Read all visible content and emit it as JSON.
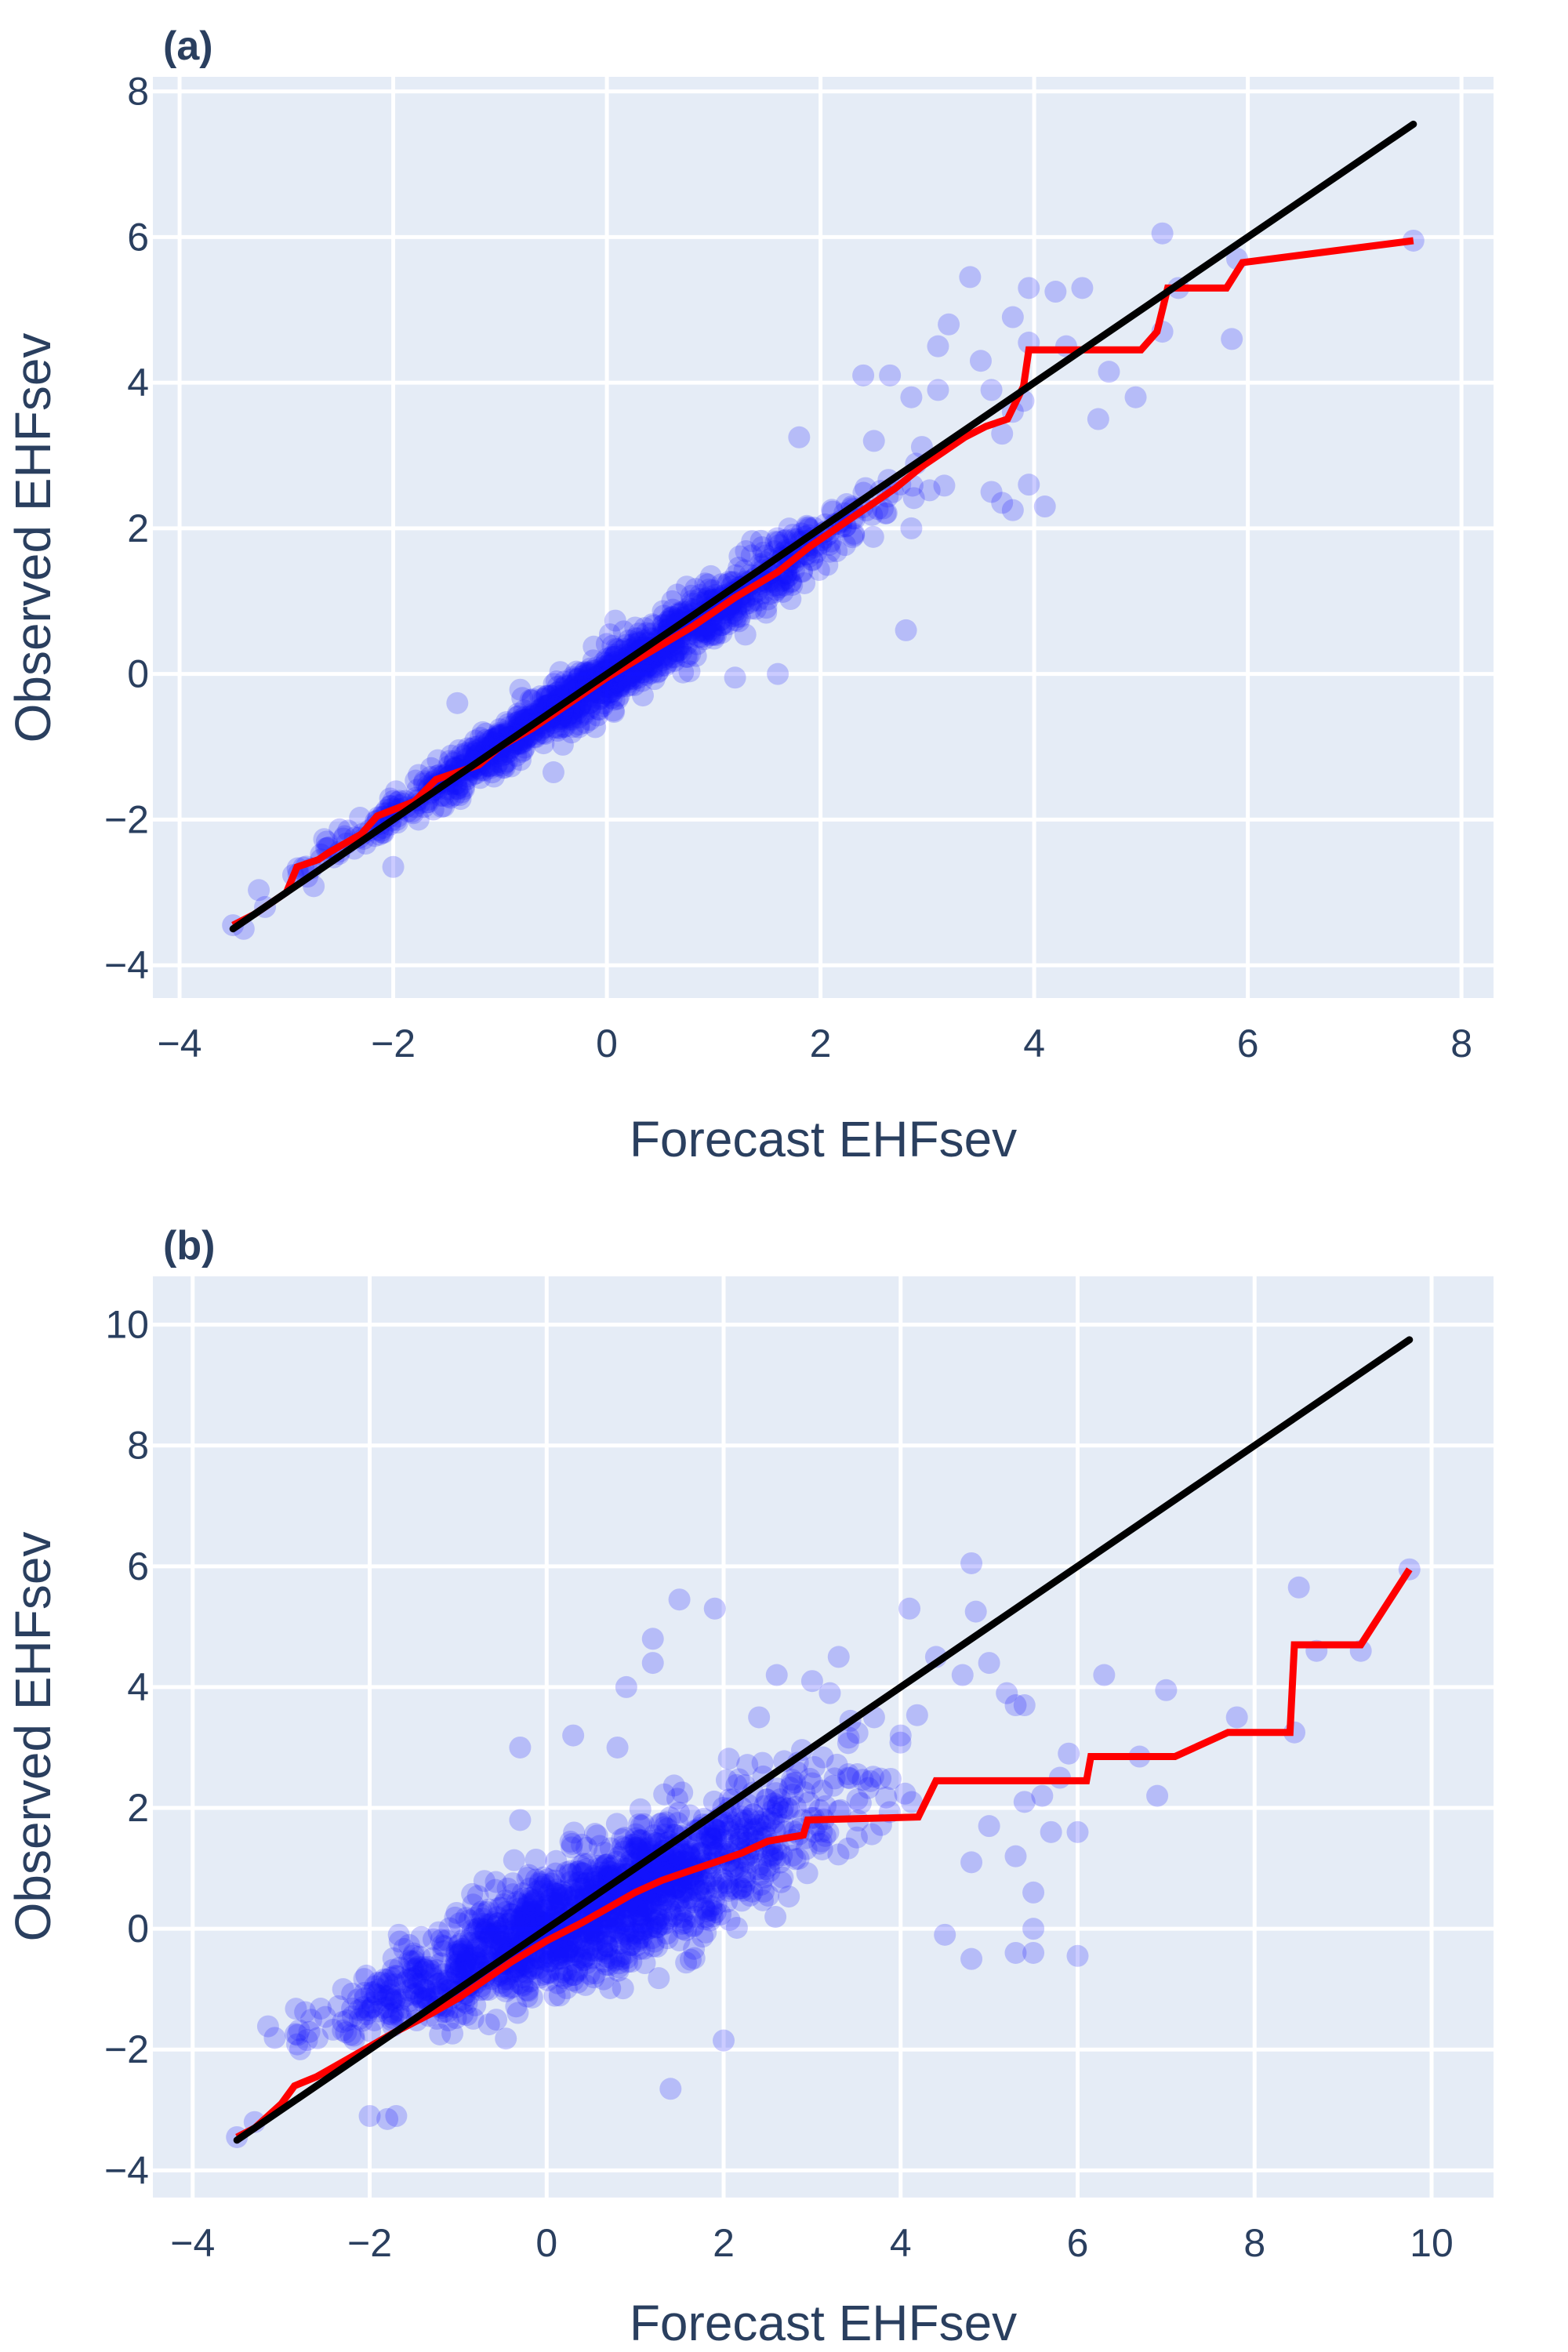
{
  "chart_data": [
    {
      "type": "scatter",
      "panel_label": "(a)",
      "xlabel": "Forecast EHFsev",
      "ylabel": "Observed EHFsev",
      "xlim": [
        -4.25,
        8.3
      ],
      "ylim": [
        -4.45,
        8.2
      ],
      "x_ticks": [
        -4,
        -2,
        0,
        2,
        4,
        6,
        8
      ],
      "y_ticks": [
        -4,
        -2,
        0,
        2,
        4,
        6,
        8
      ],
      "x_tick_labels": [
        "−4",
        "−2",
        "0",
        "2",
        "4",
        "6",
        "8"
      ],
      "y_tick_labels": [
        "−4",
        "−2",
        "0",
        "2",
        "4",
        "6",
        "8"
      ],
      "grid": true,
      "colors": {
        "points": "#1414ff",
        "binned_line": "#ff0000",
        "identity_line": "#000000",
        "plot_background": "#e5ecf6"
      },
      "series": [
        {
          "kind": "points",
          "cloud": {
            "x_range": [
              -3.5,
              3.5
            ],
            "slope": 0.93,
            "spread": 0.22,
            "n": 1300
          },
          "points": [
            [
              -3.5,
              -3.45
            ],
            [
              -3.4,
              -3.5
            ],
            [
              -3.2,
              -3.2
            ],
            [
              -2.0,
              -2.65
            ],
            [
              -1.4,
              -0.4
            ],
            [
              -0.5,
              -1.35
            ],
            [
              1.2,
              -0.05
            ],
            [
              1.6,
              0.0
            ],
            [
              2.8,
              0.6
            ],
            [
              2.85,
              2.0
            ],
            [
              2.5,
              3.2
            ],
            [
              1.8,
              3.25
            ],
            [
              2.4,
              4.1
            ],
            [
              2.65,
              4.1
            ],
            [
              2.85,
              3.8
            ],
            [
              3.1,
              3.9
            ],
            [
              3.1,
              4.5
            ],
            [
              3.2,
              4.8
            ],
            [
              3.4,
              5.45
            ],
            [
              3.5,
              4.3
            ],
            [
              3.6,
              3.9
            ],
            [
              3.7,
              3.3
            ],
            [
              3.8,
              3.6
            ],
            [
              3.9,
              3.75
            ],
            [
              3.6,
              2.5
            ],
            [
              3.7,
              2.35
            ],
            [
              3.8,
              2.25
            ],
            [
              3.95,
              2.6
            ],
            [
              4.1,
              2.3
            ],
            [
              3.8,
              4.9
            ],
            [
              3.95,
              5.3
            ],
            [
              4.2,
              5.25
            ],
            [
              4.45,
              5.3
            ],
            [
              3.95,
              4.55
            ],
            [
              4.3,
              4.5
            ],
            [
              4.7,
              4.15
            ],
            [
              4.6,
              3.5
            ],
            [
              4.95,
              3.8
            ],
            [
              5.2,
              6.05
            ],
            [
              5.35,
              5.3
            ],
            [
              5.2,
              4.7
            ],
            [
              5.9,
              5.7
            ],
            [
              5.85,
              4.6
            ],
            [
              7.55,
              5.95
            ]
          ]
        },
        {
          "kind": "binned_line",
          "x": [
            -3.5,
            -3.3,
            -3.0,
            -2.9,
            -2.7,
            -2.6,
            -2.3,
            -2.15,
            -1.8,
            -1.6,
            -1.2,
            -1.0,
            -0.7,
            -0.4,
            0.0,
            0.4,
            0.8,
            1.2,
            1.6,
            1.9,
            2.2,
            2.45,
            2.7,
            2.95,
            3.15,
            3.35,
            3.55,
            3.75,
            3.9,
            3.95,
            4.6,
            5.0,
            5.15,
            5.25,
            5.8,
            5.95,
            7.55
          ],
          "y": [
            -3.45,
            -3.3,
            -3.0,
            -2.65,
            -2.55,
            -2.45,
            -2.2,
            -1.95,
            -1.75,
            -1.45,
            -1.25,
            -1.0,
            -0.75,
            -0.45,
            -0.05,
            0.3,
            0.65,
            1.05,
            1.4,
            1.75,
            2.05,
            2.3,
            2.55,
            2.85,
            3.05,
            3.25,
            3.4,
            3.5,
            3.95,
            4.45,
            4.45,
            4.45,
            4.7,
            5.3,
            5.3,
            5.65,
            5.95
          ]
        },
        {
          "kind": "identity_line",
          "x": [
            -3.5,
            7.55
          ],
          "y": [
            -3.5,
            7.55
          ]
        }
      ]
    },
    {
      "type": "scatter",
      "panel_label": "(b)",
      "xlabel": "Forecast EHFsev",
      "ylabel": "Observed EHFsev",
      "xlim": [
        -4.45,
        10.7
      ],
      "ylim": [
        -4.45,
        10.8
      ],
      "x_ticks": [
        -4,
        -2,
        0,
        2,
        4,
        6,
        8,
        10
      ],
      "y_ticks": [
        -4,
        -2,
        0,
        2,
        4,
        6,
        8,
        10
      ],
      "x_tick_labels": [
        "−4",
        "−2",
        "0",
        "2",
        "4",
        "6",
        "8",
        "10"
      ],
      "y_tick_labels": [
        "−4",
        "−2",
        "0",
        "2",
        "4",
        "6",
        "8",
        "10"
      ],
      "grid": true,
      "colors": {
        "points": "#1414ff",
        "binned_line": "#ff0000",
        "identity_line": "#000000",
        "plot_background": "#e5ecf6"
      },
      "series": [
        {
          "kind": "points",
          "cloud": {
            "x_range": [
              -3.5,
              4.5
            ],
            "slope": 0.62,
            "spread": 0.55,
            "n": 1600
          },
          "points": [
            [
              -3.5,
              -3.45
            ],
            [
              -3.3,
              -3.2
            ],
            [
              -2.3,
              -1.0
            ],
            [
              -2.0,
              -3.1
            ],
            [
              -1.8,
              -3.15
            ],
            [
              -1.7,
              -3.1
            ],
            [
              -0.3,
              3.0
            ],
            [
              -0.3,
              1.8
            ],
            [
              0.3,
              3.2
            ],
            [
              0.8,
              3.0
            ],
            [
              0.9,
              4.0
            ],
            [
              1.2,
              4.4
            ],
            [
              1.2,
              4.8
            ],
            [
              1.5,
              5.45
            ],
            [
              1.9,
              5.3
            ],
            [
              1.4,
              -2.65
            ],
            [
              2.0,
              -1.85
            ],
            [
              2.4,
              3.5
            ],
            [
              2.6,
              4.2
            ],
            [
              3.0,
              4.1
            ],
            [
              3.2,
              3.9
            ],
            [
              3.3,
              4.5
            ],
            [
              3.7,
              3.5
            ],
            [
              4.0,
              3.2
            ],
            [
              4.1,
              5.3
            ],
            [
              4.4,
              4.5
            ],
            [
              4.7,
              4.2
            ],
            [
              4.8,
              6.05
            ],
            [
              4.85,
              5.25
            ],
            [
              5.0,
              4.4
            ],
            [
              5.2,
              3.9
            ],
            [
              5.3,
              3.7
            ],
            [
              5.4,
              3.7
            ],
            [
              5.0,
              1.7
            ],
            [
              4.8,
              1.1
            ],
            [
              5.3,
              1.2
            ],
            [
              5.5,
              0.6
            ],
            [
              5.6,
              2.2
            ],
            [
              5.9,
              2.9
            ],
            [
              5.8,
              2.5
            ],
            [
              5.4,
              2.1
            ],
            [
              5.7,
              1.6
            ],
            [
              6.0,
              1.6
            ],
            [
              4.5,
              -0.1
            ],
            [
              4.8,
              -0.5
            ],
            [
              5.3,
              -0.4
            ],
            [
              5.5,
              0.0
            ],
            [
              5.5,
              -0.4
            ],
            [
              6.0,
              -0.45
            ],
            [
              6.3,
              4.2
            ],
            [
              6.7,
              2.85
            ],
            [
              7.0,
              3.95
            ],
            [
              6.9,
              2.2
            ],
            [
              7.8,
              3.5
            ],
            [
              8.5,
              5.65
            ],
            [
              8.45,
              3.25
            ],
            [
              8.7,
              4.6
            ],
            [
              9.2,
              4.6
            ],
            [
              9.75,
              5.95
            ]
          ]
        },
        {
          "kind": "binned_line",
          "x": [
            -3.5,
            -3.3,
            -3.0,
            -2.85,
            -2.6,
            -2.3,
            -2.0,
            -1.7,
            -1.3,
            -1.0,
            -0.7,
            -0.4,
            0.0,
            0.4,
            0.7,
            1.0,
            1.3,
            1.6,
            1.9,
            2.2,
            2.5,
            2.9,
            2.95,
            4.2,
            4.4,
            6.1,
            6.15,
            7.1,
            7.7,
            8.4,
            8.45,
            9.2,
            9.75
          ],
          "y": [
            -3.45,
            -3.3,
            -2.9,
            -2.6,
            -2.45,
            -2.2,
            -1.95,
            -1.7,
            -1.4,
            -1.15,
            -0.85,
            -0.55,
            -0.2,
            0.1,
            0.35,
            0.6,
            0.8,
            0.95,
            1.1,
            1.25,
            1.45,
            1.55,
            1.8,
            1.85,
            2.45,
            2.45,
            2.85,
            2.85,
            3.25,
            3.25,
            4.7,
            4.7,
            5.95
          ]
        },
        {
          "kind": "identity_line",
          "x": [
            -3.5,
            9.75
          ],
          "y": [
            -3.5,
            9.75
          ]
        }
      ]
    }
  ]
}
